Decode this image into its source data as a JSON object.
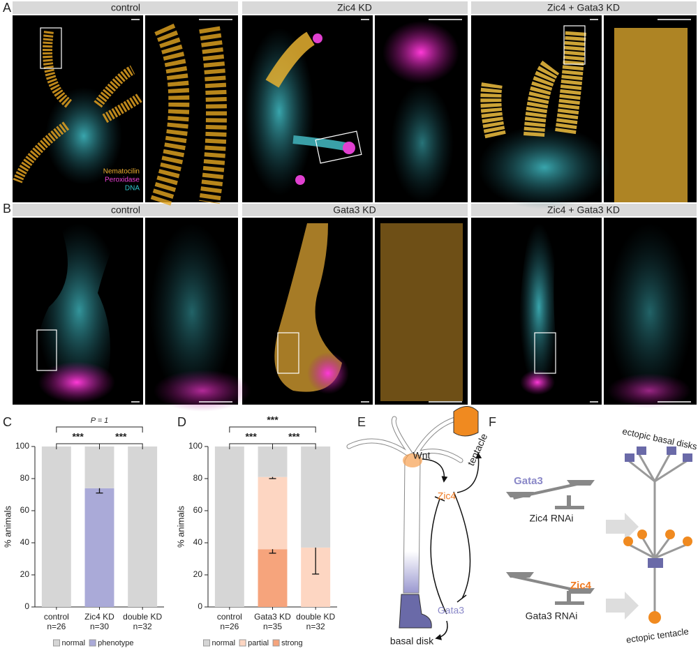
{
  "panel_labels": [
    "A",
    "B",
    "C",
    "D",
    "E",
    "F"
  ],
  "panel_a": {
    "headers": [
      "control",
      "Zic4 KD",
      "Zic4 + Gata3 KD"
    ],
    "legend": [
      "Nematocilin",
      "Peroxidase",
      "DNA"
    ]
  },
  "panel_b": {
    "headers": [
      "control",
      "Gata3 KD",
      "Zic4 + Gata3 KD"
    ]
  },
  "chart_data": [
    {
      "type": "bar",
      "stacked": true,
      "categories": [
        "control",
        "Zic4 KD",
        "double KD"
      ],
      "sample_sizes": [
        "n=26",
        "n=30",
        "n=32"
      ],
      "ylabel": "% animals",
      "ylim": [
        0,
        100
      ],
      "yticks": [
        0,
        20,
        40,
        60,
        80,
        100
      ],
      "series": [
        {
          "name": "phenotype",
          "color": "#aaaad8",
          "values": [
            0,
            74,
            0
          ],
          "errors": [
            null,
            3,
            null
          ]
        },
        {
          "name": "normal",
          "color": "#d6d6d6",
          "values": [
            100,
            26,
            100
          ],
          "errors": [
            null,
            null,
            null
          ]
        }
      ],
      "comparisons": [
        {
          "between": [
            0,
            1
          ],
          "label": "***"
        },
        {
          "between": [
            1,
            2
          ],
          "label": "***"
        },
        {
          "between": [
            0,
            2
          ],
          "label": "P = 1"
        }
      ]
    },
    {
      "type": "bar",
      "stacked": true,
      "categories": [
        "control",
        "Gata3 KD",
        "double KD"
      ],
      "sample_sizes": [
        "n=26",
        "n=35",
        "n=32"
      ],
      "ylabel": "% animals",
      "ylim": [
        0,
        100
      ],
      "yticks": [
        0,
        20,
        40,
        60,
        80,
        100
      ],
      "series": [
        {
          "name": "strong",
          "color": "#f6a47c",
          "values": [
            0,
            36,
            0
          ],
          "errors": [
            null,
            2.5,
            null
          ]
        },
        {
          "name": "partial",
          "color": "#fdd6c2",
          "values": [
            0,
            45,
            37
          ],
          "errors": [
            null,
            1,
            16.5
          ]
        },
        {
          "name": "normal",
          "color": "#d6d6d6",
          "values": [
            100,
            19,
            63
          ],
          "errors": [
            null,
            null,
            null
          ]
        }
      ],
      "comparisons": [
        {
          "between": [
            0,
            1
          ],
          "label": "***"
        },
        {
          "between": [
            1,
            2
          ],
          "label": "***"
        },
        {
          "between": [
            0,
            2
          ],
          "label": "***"
        }
      ]
    }
  ],
  "panel_e": {
    "wnt": "Wnt",
    "zic4": "Zic4",
    "gata3": "Gata3",
    "tentacle": "tentacle",
    "basal_disk": "basal disk"
  },
  "panel_f": {
    "top_gene": "Gata3",
    "top_rnai": "Zic4 RNAi",
    "top_result": "ectopic basal disks",
    "bottom_gene": "Zic4",
    "bottom_rnai": "Gata3 RNAi",
    "bottom_result": "ectopic tentacle"
  }
}
